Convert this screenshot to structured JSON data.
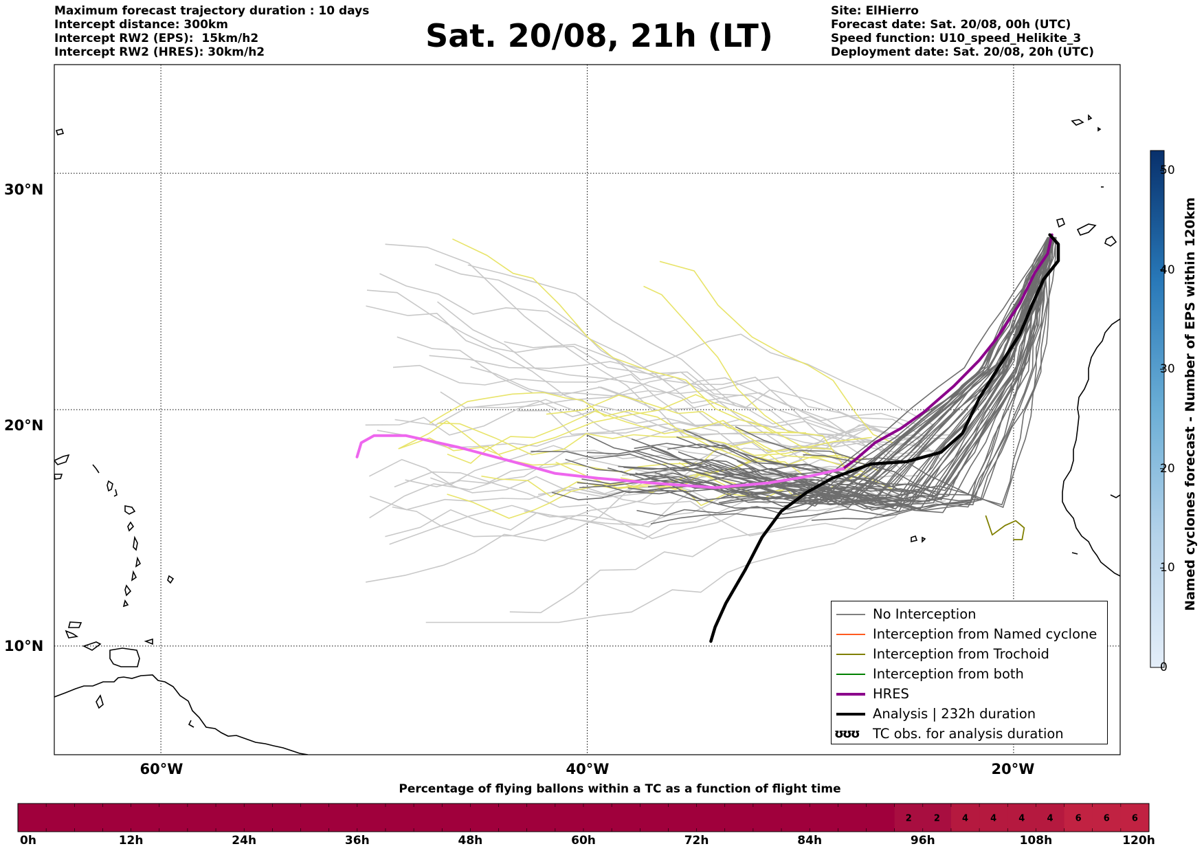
{
  "header_left": [
    "Maximum forecast trajectory duration : 10 days",
    "Intercept distance: 300km",
    "Intercept RW2 (EPS):  15km/h2",
    "Intercept RW2 (HRES): 30km/h2"
  ],
  "header_right": [
    "Site: ElHierro",
    "Forecast date: Sat. 20/08, 00h (UTC)",
    "Speed function: U10_speed_Helikite_3",
    "Deployment date: Sat. 20/08, 20h (UTC)"
  ],
  "title": "Sat. 20/08, 21h (LT)",
  "chart_data": [
    {
      "type": "line",
      "subtype": "trajectory-map",
      "x_axis": {
        "ticks": [
          -60,
          -40,
          -20
        ],
        "tick_labels": [
          "60°W",
          "40°W",
          "20°W"
        ],
        "range": [
          -65,
          -15
        ]
      },
      "y_axis": {
        "ticks": [
          10,
          20,
          30
        ],
        "tick_labels": [
          "10°N",
          "20°N",
          "30°N"
        ],
        "range": [
          5.4,
          34.6
        ]
      },
      "grid": true,
      "legend_position": "bottom-right",
      "legend": [
        {
          "label": "No Interception",
          "color": "#808080"
        },
        {
          "label": "Interception from Named cyclone",
          "color": "#ff5a1f"
        },
        {
          "label": "Interception from Trochoid",
          "color": "#808000"
        },
        {
          "label": "Interception from both",
          "color": "#008000"
        },
        {
          "label": "HRES",
          "color": "#8b008b"
        },
        {
          "label": "Analysis | 232h duration",
          "color": "#000000"
        },
        {
          "label": "TC obs. for analysis duration",
          "symbol": "ʊʊʊ"
        }
      ],
      "series": [
        {
          "name": "HRES",
          "color": "#8b008b",
          "points": [
            [
              -18.2,
              27.4
            ],
            [
              -18.4,
              26.6
            ],
            [
              -19,
              25.8
            ],
            [
              -19.7,
              24.5
            ],
            [
              -20.8,
              23.0
            ],
            [
              -21.6,
              22.1
            ],
            [
              -22.8,
              21.0
            ],
            [
              -24.2,
              19.9
            ],
            [
              -25.3,
              19.2
            ],
            [
              -26.5,
              18.6
            ],
            [
              -27.4,
              17.9
            ],
            [
              -28.0,
              17.5
            ]
          ]
        },
        {
          "name": "HRES (continued)",
          "color": "#ee66ee",
          "points": [
            [
              -28.0,
              17.5
            ],
            [
              -29.5,
              17.2
            ],
            [
              -31.5,
              16.9
            ],
            [
              -34,
              16.7
            ],
            [
              -37,
              16.9
            ],
            [
              -39.5,
              17.1
            ],
            [
              -41.5,
              17.3
            ],
            [
              -43.5,
              17.8
            ],
            [
              -46,
              18.4
            ],
            [
              -48.5,
              18.9
            ],
            [
              -50.0,
              18.9
            ],
            [
              -50.6,
              18.6
            ],
            [
              -50.8,
              18.0
            ]
          ]
        },
        {
          "name": "Analysis",
          "color": "#000000",
          "points": [
            [
              -18.3,
              27.4
            ],
            [
              -17.9,
              27.0
            ],
            [
              -17.9,
              26.3
            ],
            [
              -18.6,
              25.5
            ],
            [
              -19.1,
              24.5
            ],
            [
              -19.7,
              23.2
            ],
            [
              -20.7,
              21.8
            ],
            [
              -21.6,
              20.5
            ],
            [
              -22.4,
              19.0
            ],
            [
              -23.4,
              18.2
            ],
            [
              -25.0,
              17.8
            ],
            [
              -26.7,
              17.7
            ],
            [
              -28.5,
              17.1
            ],
            [
              -29.7,
              16.5
            ],
            [
              -30.9,
              15.7
            ],
            [
              -31.8,
              14.6
            ],
            [
              -32.6,
              13.2
            ],
            [
              -33.5,
              11.8
            ],
            [
              -34.0,
              10.8
            ],
            [
              -34.2,
              10.2
            ]
          ]
        },
        {
          "name": "No Interception (EPS members)",
          "color": "#6e6e6e",
          "count": 51
        },
        {
          "name": "Grey outer members",
          "color": "#c8c8c8"
        },
        {
          "name": "Yellow members",
          "color": "#e8e46a"
        },
        {
          "name": "Interception from Trochoid",
          "color": "#808000",
          "points": [
            [
              -21.3,
              15.5
            ],
            [
              -21.0,
              14.7
            ],
            [
              -20.4,
              15.1
            ],
            [
              -19.9,
              15.3
            ],
            [
              -19.5,
              15.0
            ],
            [
              -19.6,
              14.5
            ],
            [
              -20.0,
              14.5
            ]
          ]
        }
      ]
    },
    {
      "type": "heatmap",
      "name": "Named cyclones forecast colorbar",
      "label": "Named cyclones forecast - Number of EPS within 120km",
      "range": [
        0,
        52
      ],
      "ticks": [
        0,
        10,
        20,
        30,
        40,
        50
      ],
      "colors": [
        "#e4eef9",
        "#08306b"
      ]
    },
    {
      "type": "table",
      "title": "Percentage of flying ballons within a TC as a function of flight time",
      "x_ticks": [
        "0h",
        "12h",
        "24h",
        "36h",
        "48h",
        "60h",
        "72h",
        "84h",
        "96h",
        "108h",
        "120h"
      ],
      "hours_per_cell": 3,
      "values": [
        0,
        0,
        0,
        0,
        0,
        0,
        0,
        0,
        0,
        0,
        0,
        0,
        0,
        0,
        0,
        0,
        0,
        0,
        0,
        0,
        0,
        0,
        0,
        0,
        0,
        0,
        0,
        0,
        0,
        0,
        0,
        2,
        2,
        4,
        4,
        4,
        4,
        6,
        6,
        6
      ],
      "colors": {
        "0": "#a0003c",
        "2": "#a80e40",
        "4": "#b5193f",
        "6": "#c12242"
      }
    }
  ]
}
